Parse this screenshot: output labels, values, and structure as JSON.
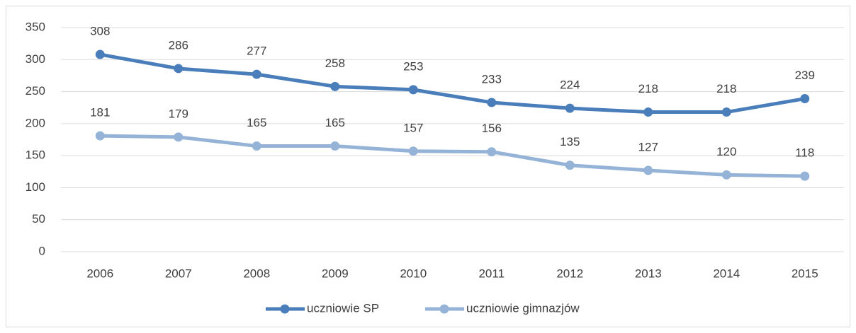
{
  "chart_data": {
    "type": "line",
    "categories": [
      "2006",
      "2007",
      "2008",
      "2009",
      "2010",
      "2011",
      "2012",
      "2013",
      "2014",
      "2015"
    ],
    "series": [
      {
        "name": "uczniowie SP",
        "color": "#4a7ebb",
        "values": [
          308,
          286,
          277,
          258,
          253,
          233,
          224,
          218,
          218,
          239
        ]
      },
      {
        "name": "uczniowie gimnazjów",
        "color": "#95b3d7",
        "values": [
          181,
          179,
          165,
          165,
          157,
          156,
          135,
          127,
          120,
          118
        ]
      }
    ],
    "ylim": [
      0,
      350
    ],
    "yticks": [
      0,
      50,
      100,
      150,
      200,
      250,
      300,
      350
    ],
    "grid": true,
    "legend": "bottom"
  }
}
